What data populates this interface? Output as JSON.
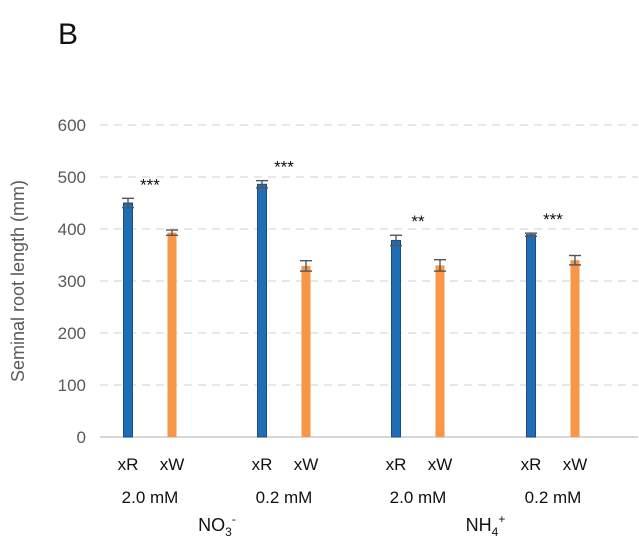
{
  "chart_data": {
    "type": "bar",
    "panel_label": "B",
    "ylabel": "Seminal root length (mm)",
    "ylim": [
      0,
      600
    ],
    "yticks": [
      "0",
      "100",
      "200",
      "300",
      "400",
      "500",
      "600"
    ],
    "grid": true,
    "series_colors": {
      "xR": "#1f6eb5",
      "xW": "#f79646"
    },
    "groups": [
      {
        "concentration": "2.0 mM",
        "bars": [
          {
            "label": "xR",
            "value": 450,
            "error": 9
          },
          {
            "label": "xW",
            "value": 393,
            "error": 5
          }
        ],
        "significance": "***"
      },
      {
        "concentration": "0.2 mM",
        "bars": [
          {
            "label": "xR",
            "value": 486,
            "error": 7
          },
          {
            "label": "xW",
            "value": 329,
            "error": 10
          }
        ],
        "significance": "***"
      },
      {
        "concentration": "2.0 mM",
        "bars": [
          {
            "label": "xR",
            "value": 378,
            "error": 10
          },
          {
            "label": "xW",
            "value": 330,
            "error": 11
          }
        ],
        "significance": "**"
      },
      {
        "concentration": "0.2 mM",
        "bars": [
          {
            "label": "xR",
            "value": 389,
            "error": 3
          },
          {
            "label": "xW",
            "value": 340,
            "error": 9
          }
        ],
        "significance": "***"
      }
    ],
    "ions": [
      {
        "base": "NO",
        "sub": "3",
        "sup": "-"
      },
      {
        "base": "NH",
        "sub": "4",
        "sup": "+"
      }
    ]
  }
}
